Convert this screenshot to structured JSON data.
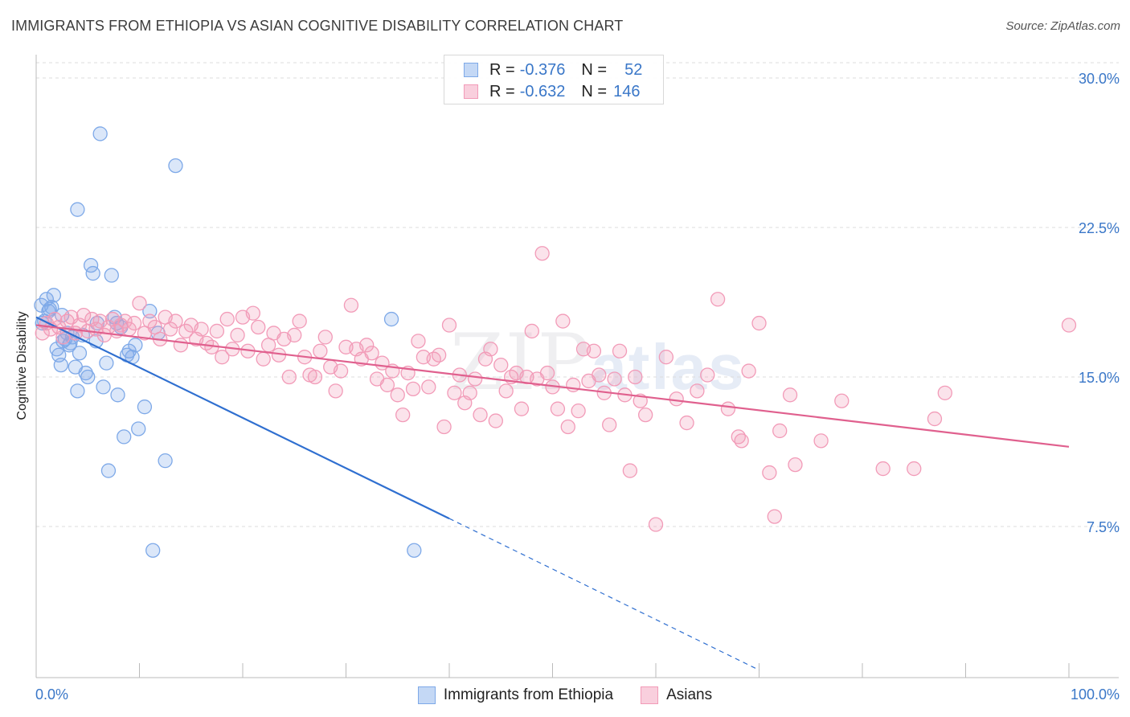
{
  "title": "IMMIGRANTS FROM ETHIOPIA VS ASIAN COGNITIVE DISABILITY CORRELATION CHART",
  "source": "Source: ZipAtlas.com",
  "watermark": {
    "zip": "ZIP",
    "atlas": "atlas"
  },
  "legend_top": [
    {
      "r_label": "R =",
      "r_value": "-0.376",
      "n_label": "N =",
      "n_value": "52",
      "color": "#7ea9e8"
    },
    {
      "r_label": "R =",
      "r_value": "-0.632",
      "n_label": "N =",
      "n_value": "146",
      "color": "#f29bb8"
    }
  ],
  "legend_bottom": [
    {
      "label": "Immigrants from Ethiopia",
      "color": "#7ea9e8"
    },
    {
      "label": "Asians",
      "color": "#f29bb8"
    }
  ],
  "chart_data": {
    "type": "scatter",
    "title": "IMMIGRANTS FROM ETHIOPIA VS ASIAN COGNITIVE DISABILITY CORRELATION CHART",
    "xlabel": "",
    "ylabel": "Cognitive Disability",
    "xlim": [
      0,
      100
    ],
    "ylim": [
      0,
      32
    ],
    "x_tick_labels": [
      "0.0%",
      "100.0%"
    ],
    "y_ticks": [
      7.5,
      15.0,
      22.5,
      30.0
    ],
    "y_tick_labels": [
      "7.5%",
      "15.0%",
      "22.5%",
      "30.0%"
    ],
    "grid": true,
    "series": [
      {
        "name": "Immigrants from Ethiopia",
        "color": "#7ea9e8",
        "line_color": "#2f6fd0",
        "trend": {
          "x0": 0,
          "y0": 18.0,
          "x1": 40,
          "y1": 7.9,
          "dash_to_x": 70,
          "dash_to_y": 0.3
        },
        "points": [
          [
            0.5,
            18.6
          ],
          [
            0.8,
            17.8
          ],
          [
            1.0,
            18.9
          ],
          [
            1.2,
            18.3
          ],
          [
            1.5,
            18.5
          ],
          [
            1.7,
            19.1
          ],
          [
            0.6,
            17.7
          ],
          [
            2.0,
            16.4
          ],
          [
            2.2,
            16.1
          ],
          [
            2.4,
            15.6
          ],
          [
            2.6,
            16.8
          ],
          [
            2.8,
            16.9
          ],
          [
            3.0,
            17.2
          ],
          [
            3.2,
            16.6
          ],
          [
            3.5,
            17.0
          ],
          [
            3.8,
            15.5
          ],
          [
            4.0,
            14.3
          ],
          [
            4.2,
            16.2
          ],
          [
            4.5,
            17.1
          ],
          [
            4.8,
            15.2
          ],
          [
            5.0,
            15.0
          ],
          [
            5.3,
            20.6
          ],
          [
            5.5,
            20.2
          ],
          [
            5.8,
            16.8
          ],
          [
            6.2,
            27.2
          ],
          [
            6.5,
            14.5
          ],
          [
            6.8,
            15.7
          ],
          [
            7.0,
            10.3
          ],
          [
            7.3,
            20.1
          ],
          [
            7.6,
            18.0
          ],
          [
            7.9,
            14.1
          ],
          [
            8.2,
            17.5
          ],
          [
            8.5,
            12.0
          ],
          [
            8.8,
            16.1
          ],
          [
            9.0,
            16.3
          ],
          [
            9.3,
            16.0
          ],
          [
            9.6,
            16.6
          ],
          [
            9.9,
            12.4
          ],
          [
            10.5,
            13.5
          ],
          [
            11.0,
            18.3
          ],
          [
            11.3,
            6.3
          ],
          [
            11.8,
            17.2
          ],
          [
            12.5,
            10.8
          ],
          [
            13.5,
            25.6
          ],
          [
            4.0,
            23.4
          ],
          [
            34.4,
            17.9
          ],
          [
            36.6,
            6.3
          ],
          [
            1.3,
            18.4
          ],
          [
            2.5,
            18.1
          ],
          [
            3.3,
            16.7
          ],
          [
            5.9,
            17.7
          ],
          [
            7.8,
            17.7
          ]
        ]
      },
      {
        "name": "Asians",
        "color": "#f29bb8",
        "line_color": "#e0608e",
        "trend": {
          "x0": 0,
          "y0": 17.6,
          "x1": 100,
          "y1": 11.5
        },
        "points": [
          [
            0.6,
            17.2
          ],
          [
            1.0,
            17.7
          ],
          [
            1.4,
            17.4
          ],
          [
            1.8,
            17.9
          ],
          [
            2.2,
            17.5
          ],
          [
            2.6,
            17.0
          ],
          [
            3.0,
            17.8
          ],
          [
            3.4,
            18.0
          ],
          [
            3.8,
            17.2
          ],
          [
            4.2,
            17.6
          ],
          [
            4.6,
            18.1
          ],
          [
            5.0,
            17.3
          ],
          [
            5.4,
            17.9
          ],
          [
            5.8,
            17.4
          ],
          [
            6.2,
            17.8
          ],
          [
            6.6,
            17.1
          ],
          [
            7.0,
            17.5
          ],
          [
            7.4,
            17.9
          ],
          [
            7.8,
            17.3
          ],
          [
            8.2,
            17.6
          ],
          [
            8.6,
            17.8
          ],
          [
            9.0,
            17.4
          ],
          [
            9.5,
            17.7
          ],
          [
            10.0,
            18.7
          ],
          [
            10.5,
            17.2
          ],
          [
            11.0,
            17.8
          ],
          [
            11.5,
            17.5
          ],
          [
            12.0,
            16.9
          ],
          [
            12.5,
            18.0
          ],
          [
            13.0,
            17.4
          ],
          [
            13.5,
            17.8
          ],
          [
            14.0,
            16.6
          ],
          [
            14.5,
            17.3
          ],
          [
            15.0,
            17.6
          ],
          [
            15.5,
            16.9
          ],
          [
            16.0,
            17.4
          ],
          [
            16.5,
            16.7
          ],
          [
            17.0,
            16.5
          ],
          [
            17.5,
            17.3
          ],
          [
            18.0,
            16.0
          ],
          [
            18.5,
            17.9
          ],
          [
            19.0,
            16.4
          ],
          [
            19.5,
            17.1
          ],
          [
            20.0,
            18.0
          ],
          [
            20.5,
            16.3
          ],
          [
            21.0,
            18.2
          ],
          [
            21.5,
            17.5
          ],
          [
            22.0,
            15.9
          ],
          [
            22.5,
            16.6
          ],
          [
            23.0,
            17.2
          ],
          [
            23.5,
            16.1
          ],
          [
            24.0,
            16.9
          ],
          [
            24.5,
            15.0
          ],
          [
            25.0,
            17.1
          ],
          [
            25.5,
            17.8
          ],
          [
            26.0,
            16.0
          ],
          [
            26.5,
            15.1
          ],
          [
            27.0,
            15.0
          ],
          [
            27.5,
            16.3
          ],
          [
            28.0,
            17.0
          ],
          [
            28.5,
            15.5
          ],
          [
            29.0,
            14.3
          ],
          [
            29.5,
            15.3
          ],
          [
            30.0,
            16.5
          ],
          [
            30.5,
            18.6
          ],
          [
            31.0,
            16.4
          ],
          [
            31.5,
            15.9
          ],
          [
            32.0,
            16.6
          ],
          [
            32.5,
            16.2
          ],
          [
            33.0,
            14.9
          ],
          [
            33.5,
            15.7
          ],
          [
            34.0,
            14.6
          ],
          [
            34.5,
            15.3
          ],
          [
            35.0,
            14.1
          ],
          [
            35.5,
            13.1
          ],
          [
            36.0,
            15.2
          ],
          [
            36.5,
            14.4
          ],
          [
            37.0,
            16.8
          ],
          [
            37.5,
            16.0
          ],
          [
            38.0,
            14.5
          ],
          [
            38.5,
            15.9
          ],
          [
            39.0,
            16.1
          ],
          [
            39.5,
            12.5
          ],
          [
            40.0,
            17.6
          ],
          [
            40.5,
            14.2
          ],
          [
            41.0,
            15.1
          ],
          [
            41.5,
            13.7
          ],
          [
            42.0,
            14.2
          ],
          [
            42.5,
            14.9
          ],
          [
            43.0,
            13.1
          ],
          [
            43.5,
            15.9
          ],
          [
            44.0,
            16.4
          ],
          [
            44.5,
            12.8
          ],
          [
            45.0,
            15.6
          ],
          [
            45.5,
            14.3
          ],
          [
            46.0,
            15.0
          ],
          [
            46.5,
            15.2
          ],
          [
            47.0,
            13.4
          ],
          [
            47.5,
            15.0
          ],
          [
            48.0,
            17.3
          ],
          [
            48.5,
            14.9
          ],
          [
            49.0,
            21.2
          ],
          [
            49.5,
            15.2
          ],
          [
            50.0,
            14.5
          ],
          [
            50.5,
            13.4
          ],
          [
            51.0,
            17.8
          ],
          [
            51.5,
            12.5
          ],
          [
            52.0,
            14.6
          ],
          [
            52.5,
            13.3
          ],
          [
            53.0,
            16.4
          ],
          [
            53.5,
            14.8
          ],
          [
            54.0,
            16.3
          ],
          [
            54.5,
            15.1
          ],
          [
            55.0,
            14.2
          ],
          [
            55.5,
            12.6
          ],
          [
            56.0,
            14.9
          ],
          [
            56.5,
            16.3
          ],
          [
            57.0,
            14.1
          ],
          [
            57.5,
            10.3
          ],
          [
            58.0,
            15.0
          ],
          [
            58.5,
            13.8
          ],
          [
            59.0,
            13.1
          ],
          [
            60.0,
            7.6
          ],
          [
            61.0,
            16.0
          ],
          [
            62.0,
            13.9
          ],
          [
            63.0,
            12.7
          ],
          [
            64.0,
            14.3
          ],
          [
            65.0,
            15.1
          ],
          [
            66.0,
            18.9
          ],
          [
            67.0,
            13.4
          ],
          [
            68.0,
            12.0
          ],
          [
            68.3,
            11.8
          ],
          [
            69.0,
            15.3
          ],
          [
            70.0,
            17.7
          ],
          [
            71.0,
            10.2
          ],
          [
            71.5,
            8.0
          ],
          [
            72.0,
            12.3
          ],
          [
            73.0,
            14.1
          ],
          [
            73.5,
            10.6
          ],
          [
            76.0,
            11.8
          ],
          [
            78.0,
            13.8
          ],
          [
            82.0,
            10.4
          ],
          [
            85.0,
            10.4
          ],
          [
            87.0,
            12.9
          ],
          [
            88.0,
            14.2
          ],
          [
            100.0,
            17.6
          ]
        ]
      }
    ]
  }
}
